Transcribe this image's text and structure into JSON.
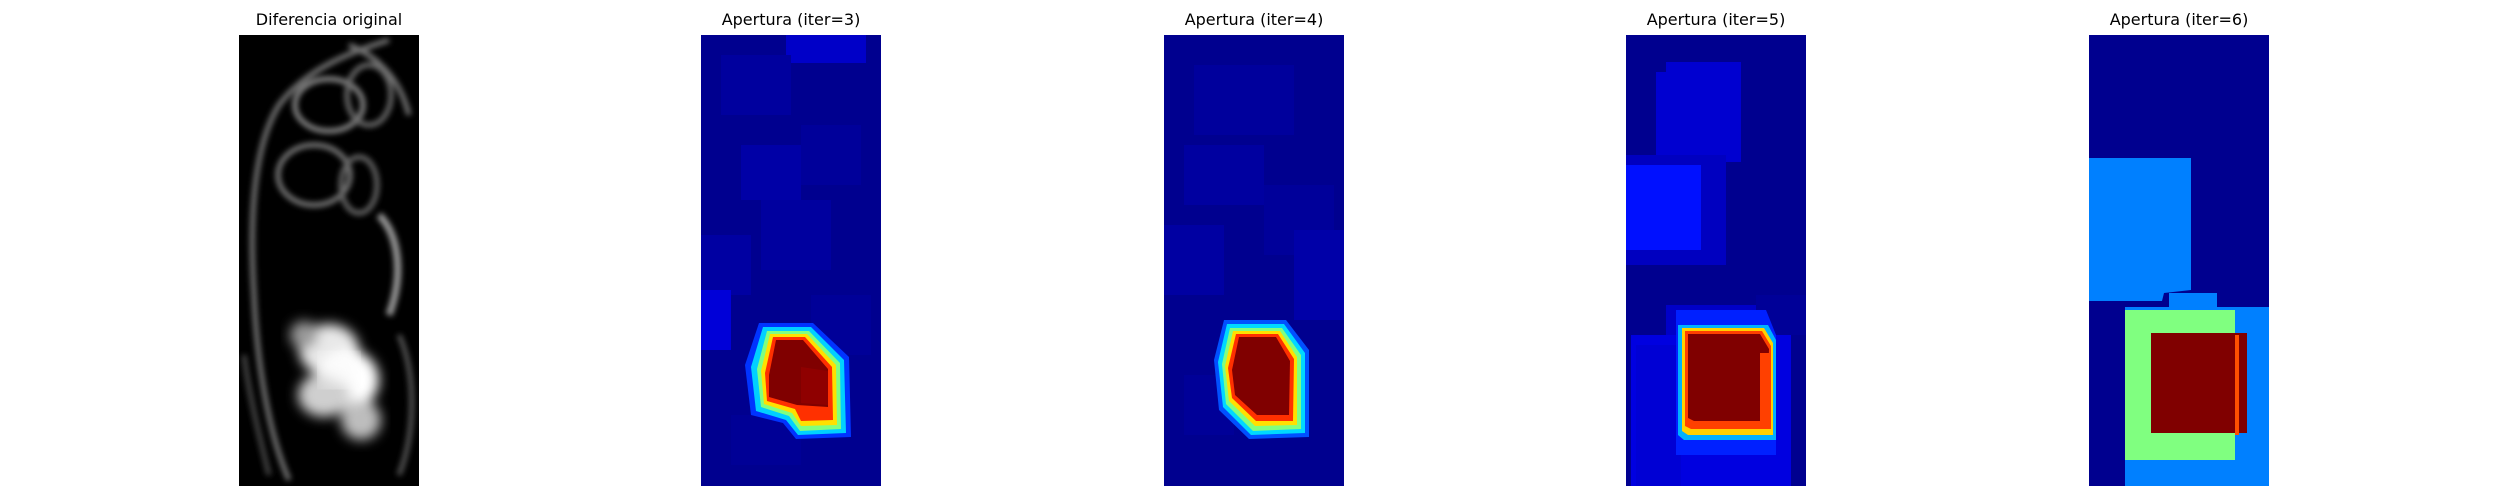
{
  "panels": [
    {
      "title": "Diferencia original",
      "colormap": "gray"
    },
    {
      "title": "Apertura (iter=3)",
      "colormap": "jet"
    },
    {
      "title": "Apertura (iter=4)",
      "colormap": "jet"
    },
    {
      "title": "Apertura (iter=5)",
      "colormap": "jet"
    },
    {
      "title": "Apertura (iter=6)",
      "colormap": "jet"
    }
  ]
}
